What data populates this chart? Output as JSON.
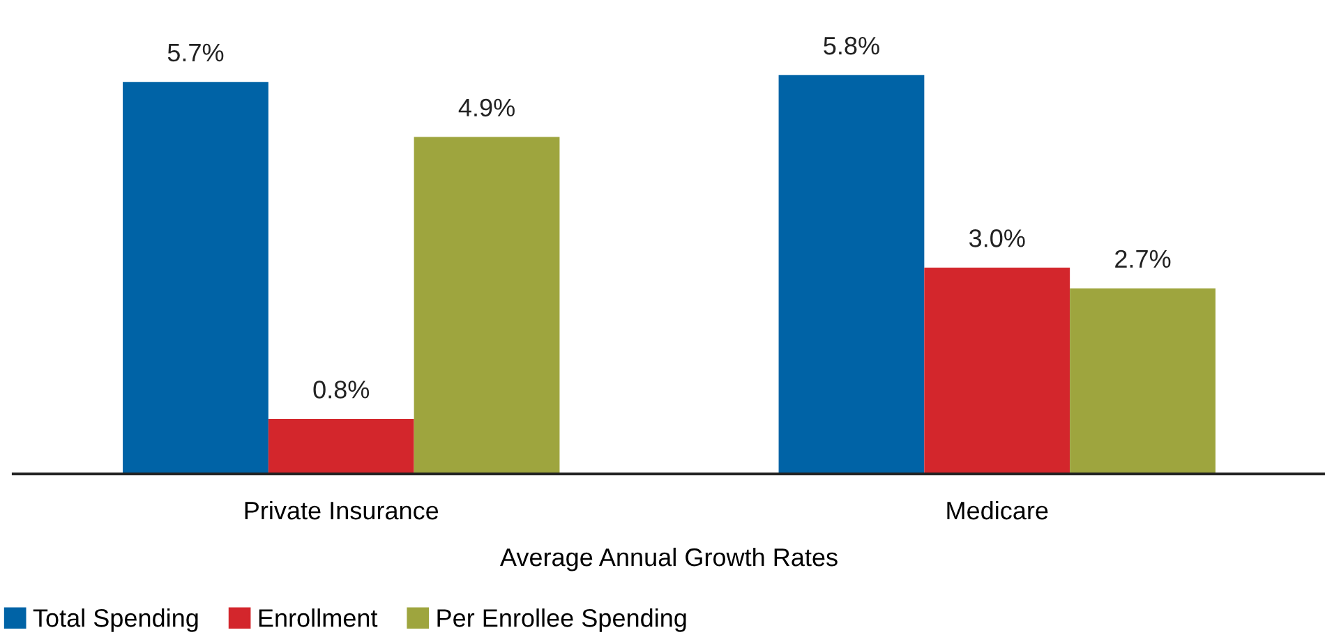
{
  "chart_data": {
    "type": "bar",
    "xlabel": "Average Annual Growth Rates",
    "categories": [
      "Private Insurance",
      "Medicare"
    ],
    "series": [
      {
        "name": "Total Spending",
        "color": "#0063a6",
        "values": [
          5.7,
          5.8
        ],
        "value_labels": [
          "5.7%",
          "5.8%"
        ]
      },
      {
        "name": "Enrollment",
        "color": "#d3262c",
        "values": [
          0.8,
          3.0
        ],
        "value_labels": [
          "0.8%",
          "3.0%"
        ]
      },
      {
        "name": "Per Enrollee Spending",
        "color": "#9ea53e",
        "values": [
          4.9,
          2.7
        ],
        "value_labels": [
          "4.9%",
          "2.7%"
        ]
      }
    ],
    "legend": "bottom left",
    "grid": false,
    "tick_labels": "x"
  }
}
